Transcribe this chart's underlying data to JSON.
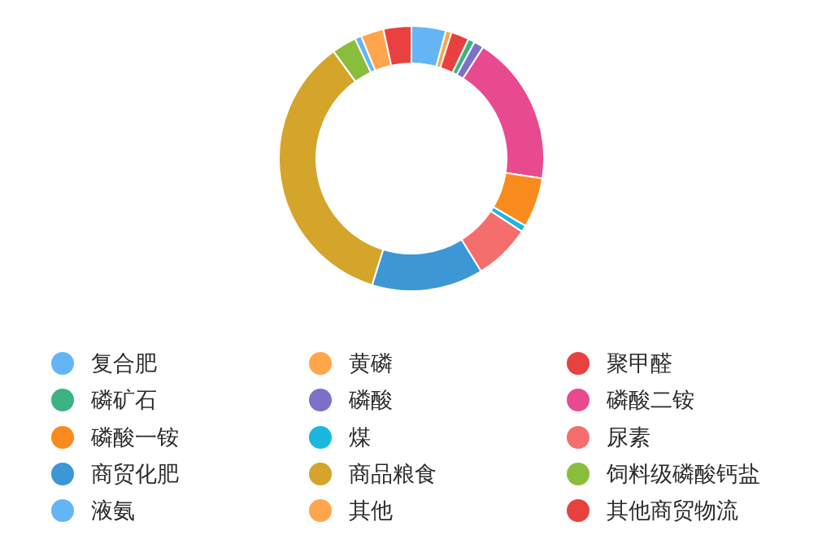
{
  "chart_data": {
    "type": "donut",
    "categories": [
      "复合肥",
      "黄磷",
      "聚甲醛",
      "磷矿石",
      "磷酸",
      "磷酸二铵",
      "磷酸一铵",
      "煤",
      "尿素",
      "商贸化肥",
      "商品粮食",
      "饲料级磷酸钙盐",
      "液氨",
      "其他",
      "其他商贸物流"
    ],
    "values": [
      4.2,
      0.7,
      2.2,
      0.8,
      1.2,
      18.3,
      6.1,
      0.8,
      6.9,
      13.6,
      35.2,
      3.0,
      0.8,
      2.8,
      3.4
    ],
    "colors": [
      "#64b5f6",
      "#ffa64d",
      "#e8413f",
      "#3cb383",
      "#7b71c8",
      "#e84a8f",
      "#f98b1e",
      "#1ab8e0",
      "#f56e6e",
      "#3c97d4",
      "#d4a42b",
      "#8bbd3c",
      "#64b5f6",
      "#ffa64d",
      "#e8413f"
    ],
    "legend": "bottom"
  }
}
